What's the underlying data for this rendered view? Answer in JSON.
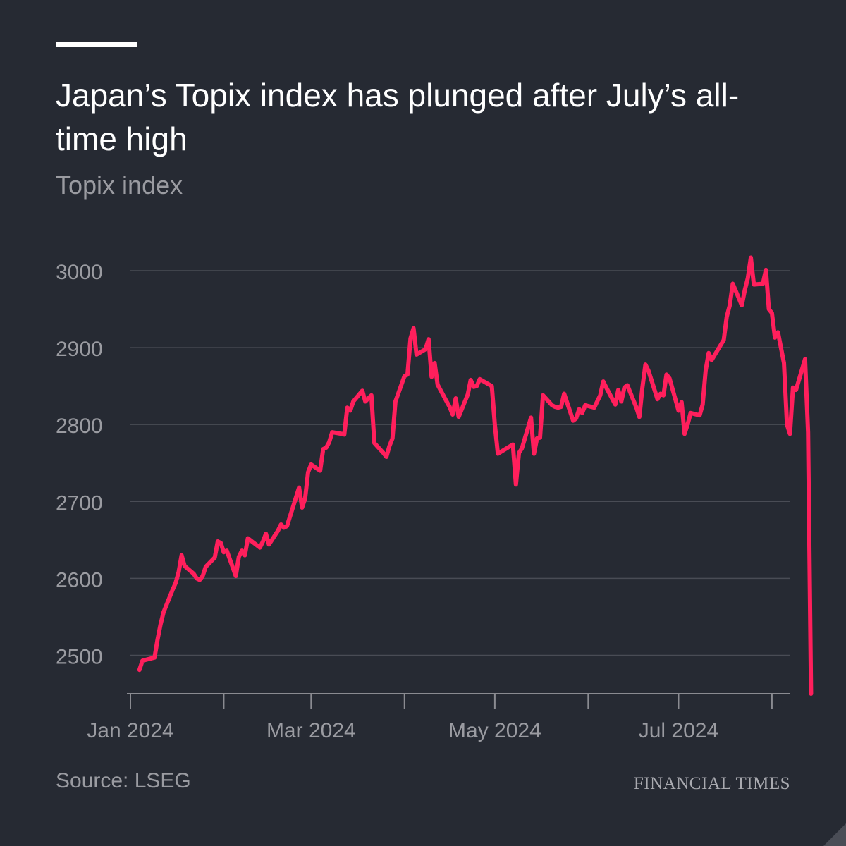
{
  "header": {
    "title": "Japan’s Topix index has plunged after July’s all-time high",
    "subtitle": "Topix index"
  },
  "footer": {
    "source": "Source: LSEG",
    "brand": "FINANCIAL TIMES"
  },
  "colors": {
    "background": "#262a33",
    "line": "#ff1f5c",
    "grid": "#494c55",
    "text_muted": "#9a9ba1"
  },
  "chart_data": {
    "type": "line",
    "title": "Japan’s Topix index has plunged after July’s all-time high",
    "subtitle": "Topix index",
    "ylim": [
      2450,
      3000
    ],
    "yticks": [
      2500,
      2600,
      2700,
      2800,
      2900,
      3000
    ],
    "xrange": [
      "2024-01-01",
      "2024-08-05"
    ],
    "xticks": [
      {
        "date": "2024-01-01",
        "label": "Jan 2024"
      },
      {
        "date": "2024-02-01",
        "label": ""
      },
      {
        "date": "2024-03-01",
        "label": "Mar 2024"
      },
      {
        "date": "2024-04-01",
        "label": ""
      },
      {
        "date": "2024-05-01",
        "label": "May 2024"
      },
      {
        "date": "2024-06-01",
        "label": ""
      },
      {
        "date": "2024-07-01",
        "label": "Jul 2024"
      },
      {
        "date": "2024-08-01",
        "label": ""
      }
    ],
    "grid": true,
    "series": [
      {
        "name": "",
        "color": "#ff1f5c",
        "points": [
          [
            "2024-01-04",
            2481
          ],
          [
            "2024-01-05",
            2493
          ],
          [
            "2024-01-09",
            2497
          ],
          [
            "2024-01-10",
            2520
          ],
          [
            "2024-01-11",
            2540
          ],
          [
            "2024-01-12",
            2556
          ],
          [
            "2024-01-15",
            2585
          ],
          [
            "2024-01-16",
            2594
          ],
          [
            "2024-01-17",
            2608
          ],
          [
            "2024-01-18",
            2630
          ],
          [
            "2024-01-19",
            2616
          ],
          [
            "2024-01-22",
            2606
          ],
          [
            "2024-01-23",
            2600
          ],
          [
            "2024-01-24",
            2598
          ],
          [
            "2024-01-25",
            2603
          ],
          [
            "2024-01-26",
            2615
          ],
          [
            "2024-01-29",
            2627
          ],
          [
            "2024-01-30",
            2648
          ],
          [
            "2024-01-31",
            2646
          ],
          [
            "2024-02-01",
            2634
          ],
          [
            "2024-02-02",
            2636
          ],
          [
            "2024-02-05",
            2603
          ],
          [
            "2024-02-06",
            2628
          ],
          [
            "2024-02-07",
            2636
          ],
          [
            "2024-02-08",
            2630
          ],
          [
            "2024-02-09",
            2652
          ],
          [
            "2024-02-13",
            2640
          ],
          [
            "2024-02-14",
            2648
          ],
          [
            "2024-02-15",
            2658
          ],
          [
            "2024-02-16",
            2644
          ],
          [
            "2024-02-19",
            2662
          ],
          [
            "2024-02-20",
            2670
          ],
          [
            "2024-02-21",
            2666
          ],
          [
            "2024-02-22",
            2668
          ],
          [
            "2024-02-26",
            2718
          ],
          [
            "2024-02-27",
            2692
          ],
          [
            "2024-02-28",
            2704
          ],
          [
            "2024-02-29",
            2738
          ],
          [
            "2024-03-01",
            2748
          ],
          [
            "2024-03-04",
            2740
          ],
          [
            "2024-03-05",
            2768
          ],
          [
            "2024-03-06",
            2770
          ],
          [
            "2024-03-07",
            2777
          ],
          [
            "2024-03-08",
            2790
          ],
          [
            "2024-03-11",
            2788
          ],
          [
            "2024-03-12",
            2787
          ],
          [
            "2024-03-13",
            2822
          ],
          [
            "2024-03-14",
            2818
          ],
          [
            "2024-03-15",
            2830
          ],
          [
            "2024-03-18",
            2844
          ],
          [
            "2024-03-19",
            2830
          ],
          [
            "2024-03-21",
            2838
          ],
          [
            "2024-03-22",
            2776
          ],
          [
            "2024-03-25",
            2763
          ],
          [
            "2024-03-26",
            2758
          ],
          [
            "2024-03-27",
            2772
          ],
          [
            "2024-03-28",
            2782
          ],
          [
            "2024-03-29",
            2830
          ],
          [
            "2024-04-01",
            2863
          ],
          [
            "2024-04-02",
            2865
          ],
          [
            "2024-04-03",
            2912
          ],
          [
            "2024-04-04",
            2925
          ],
          [
            "2024-04-05",
            2891
          ],
          [
            "2024-04-08",
            2898
          ],
          [
            "2024-04-09",
            2911
          ],
          [
            "2024-04-10",
            2862
          ],
          [
            "2024-04-11",
            2880
          ],
          [
            "2024-04-12",
            2852
          ],
          [
            "2024-04-15",
            2830
          ],
          [
            "2024-04-16",
            2823
          ],
          [
            "2024-04-17",
            2813
          ],
          [
            "2024-04-18",
            2834
          ],
          [
            "2024-04-19",
            2810
          ],
          [
            "2024-04-22",
            2839
          ],
          [
            "2024-04-23",
            2858
          ],
          [
            "2024-04-24",
            2849
          ],
          [
            "2024-04-25",
            2850
          ],
          [
            "2024-04-26",
            2859
          ],
          [
            "2024-04-30",
            2850
          ],
          [
            "2024-05-01",
            2800
          ],
          [
            "2024-05-02",
            2762
          ],
          [
            "2024-05-07",
            2774
          ],
          [
            "2024-05-08",
            2722
          ],
          [
            "2024-05-09",
            2763
          ],
          [
            "2024-05-10",
            2769
          ],
          [
            "2024-05-13",
            2809
          ],
          [
            "2024-05-14",
            2762
          ],
          [
            "2024-05-15",
            2782
          ],
          [
            "2024-05-16",
            2783
          ],
          [
            "2024-05-17",
            2838
          ],
          [
            "2024-05-20",
            2825
          ],
          [
            "2024-05-21",
            2823
          ],
          [
            "2024-05-22",
            2822
          ],
          [
            "2024-05-23",
            2823
          ],
          [
            "2024-05-24",
            2840
          ],
          [
            "2024-05-27",
            2805
          ],
          [
            "2024-05-28",
            2808
          ],
          [
            "2024-05-29",
            2820
          ],
          [
            "2024-05-30",
            2815
          ],
          [
            "2024-05-31",
            2825
          ],
          [
            "2024-06-03",
            2822
          ],
          [
            "2024-06-04",
            2830
          ],
          [
            "2024-06-05",
            2838
          ],
          [
            "2024-06-06",
            2856
          ],
          [
            "2024-06-07",
            2848
          ],
          [
            "2024-06-10",
            2826
          ],
          [
            "2024-06-11",
            2845
          ],
          [
            "2024-06-12",
            2830
          ],
          [
            "2024-06-13",
            2848
          ],
          [
            "2024-06-14",
            2851
          ],
          [
            "2024-06-17",
            2822
          ],
          [
            "2024-06-18",
            2810
          ],
          [
            "2024-06-19",
            2848
          ],
          [
            "2024-06-20",
            2878
          ],
          [
            "2024-06-21",
            2870
          ],
          [
            "2024-06-24",
            2833
          ],
          [
            "2024-06-25",
            2840
          ],
          [
            "2024-06-26",
            2838
          ],
          [
            "2024-06-27",
            2865
          ],
          [
            "2024-06-28",
            2860
          ],
          [
            "2024-07-01",
            2818
          ],
          [
            "2024-07-02",
            2829
          ],
          [
            "2024-07-03",
            2788
          ],
          [
            "2024-07-04",
            2800
          ],
          [
            "2024-07-05",
            2815
          ],
          [
            "2024-07-08",
            2812
          ],
          [
            "2024-07-09",
            2826
          ],
          [
            "2024-07-10",
            2870
          ],
          [
            "2024-07-11",
            2893
          ],
          [
            "2024-07-12",
            2884
          ],
          [
            "2024-07-16",
            2910
          ],
          [
            "2024-07-17",
            2940
          ],
          [
            "2024-07-18",
            2955
          ],
          [
            "2024-07-19",
            2983
          ],
          [
            "2024-07-22",
            2955
          ],
          [
            "2024-07-23",
            2975
          ],
          [
            "2024-07-24",
            2990
          ],
          [
            "2024-07-25",
            3017
          ],
          [
            "2024-07-26",
            2982
          ],
          [
            "2024-07-29",
            2983
          ],
          [
            "2024-07-30",
            3001
          ],
          [
            "2024-07-31",
            2950
          ],
          [
            "2024-08-01",
            2945
          ],
          [
            "2024-08-02",
            2913
          ],
          [
            "2024-08-03",
            2920
          ],
          [
            "2024-08-05",
            2880
          ],
          [
            "2024-08-06",
            2800
          ],
          [
            "2024-08-07",
            2788
          ],
          [
            "2024-08-08",
            2848
          ],
          [
            "2024-08-09",
            2845
          ],
          [
            "2024-08-12",
            2885
          ],
          [
            "2024-08-13",
            2790
          ],
          [
            "2024-08-14",
            2450
          ]
        ]
      }
    ]
  }
}
